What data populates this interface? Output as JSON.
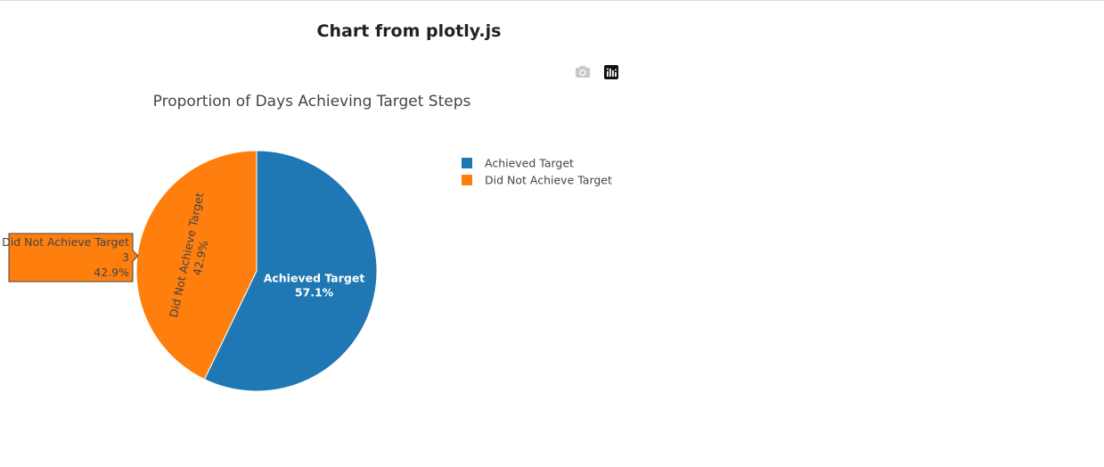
{
  "page": {
    "title": "Chart from plotly.js"
  },
  "modebar": {
    "camera_icon": "camera-icon",
    "plotly_logo_icon": "plotly-logo-icon"
  },
  "chart_data": {
    "type": "pie",
    "title": "Proportion of Days Achieving Target Steps",
    "categories": [
      "Achieved Target",
      "Did Not Achieve Target"
    ],
    "values": [
      4,
      3
    ],
    "percent_labels": [
      "57.1%",
      "42.9%"
    ],
    "colors": [
      "#1f77b4",
      "#ff7f0e"
    ],
    "legend": {
      "position": "top-right",
      "entries": [
        "Achieved Target",
        "Did Not Achieve Target"
      ]
    },
    "hover": {
      "label": "Did Not Achieve Target",
      "value": "3",
      "percent": "42.9%"
    }
  }
}
